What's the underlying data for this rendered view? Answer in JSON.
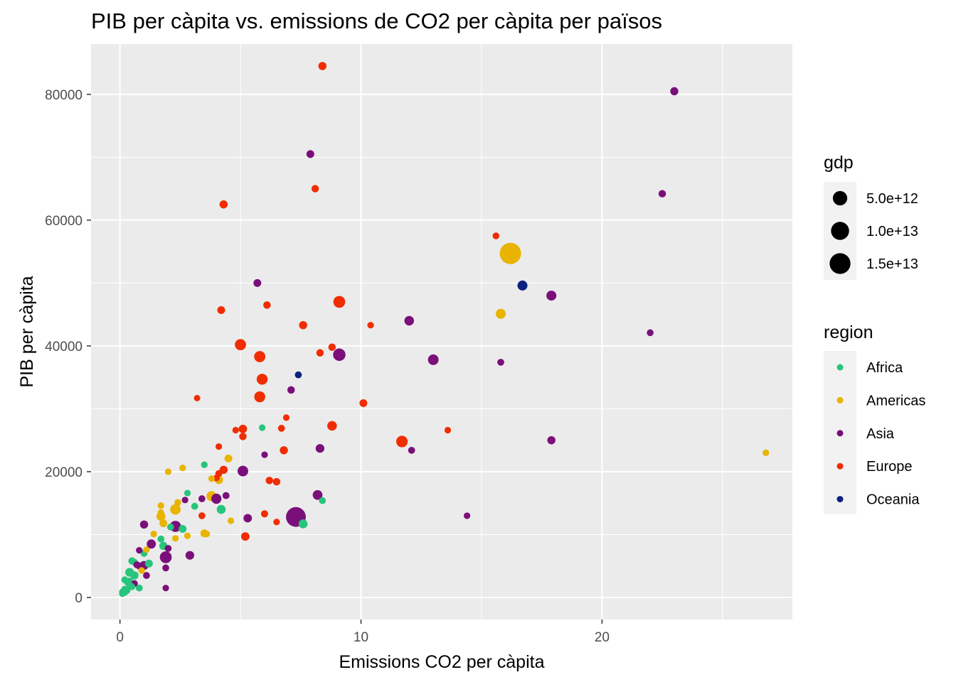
{
  "chart_data": {
    "type": "scatter",
    "title": "PIB per càpita vs. emissions de CO2 per càpita per països",
    "xlabel": "Emissions CO2 per càpita",
    "ylabel": "PIB per càpita",
    "xlim": [
      -1.2,
      27.9
    ],
    "ylim": [
      -3500,
      88000
    ],
    "x_ticks": [
      0,
      10,
      20
    ],
    "x_tick_labels": [
      "0",
      "10",
      "20"
    ],
    "y_ticks": [
      0,
      20000,
      40000,
      60000,
      80000
    ],
    "y_tick_labels": [
      "0",
      "20000",
      "40000",
      "60000",
      "80000"
    ],
    "grid": true,
    "legend_position": "right",
    "colors": {
      "Africa": "#27c47d",
      "Americas": "#e8b400",
      "Asia": "#7a0f7a",
      "Europe": "#f02d00",
      "Oceania": "#0d2080"
    },
    "size_legend": {
      "title": "gdp",
      "entries": [
        {
          "label": "5.0e+12",
          "value": 5000000000000.0
        },
        {
          "label": "1.0e+13",
          "value": 10000000000000.0
        },
        {
          "label": "1.5e+13",
          "value": 15000000000000.0
        }
      ]
    },
    "color_legend": {
      "title": "region",
      "entries": [
        "Africa",
        "Americas",
        "Asia",
        "Europe",
        "Oceania"
      ]
    },
    "points": [
      {
        "x": 8.4,
        "y": 84500,
        "region": "Europe",
        "gdp": 400000000000.0
      },
      {
        "x": 23.0,
        "y": 80500,
        "region": "Asia",
        "gdp": 400000000000.0
      },
      {
        "x": 7.9,
        "y": 70500,
        "region": "Asia",
        "gdp": 300000000000.0
      },
      {
        "x": 8.1,
        "y": 65000,
        "region": "Europe",
        "gdp": 200000000000.0
      },
      {
        "x": 22.5,
        "y": 64200,
        "region": "Asia",
        "gdp": 200000000000.0
      },
      {
        "x": 4.3,
        "y": 62500,
        "region": "Europe",
        "gdp": 400000000000.0
      },
      {
        "x": 15.6,
        "y": 57500,
        "region": "Europe",
        "gdp": 80000000000.0
      },
      {
        "x": 16.2,
        "y": 54700,
        "region": "Americas",
        "gdp": 16000000000000.0
      },
      {
        "x": 16.7,
        "y": 49600,
        "region": "Oceania",
        "gdp": 1200000000000.0
      },
      {
        "x": 17.9,
        "y": 48000,
        "region": "Asia",
        "gdp": 1200000000000.0
      },
      {
        "x": 5.7,
        "y": 50000,
        "region": "Asia",
        "gdp": 300000000000.0
      },
      {
        "x": 9.1,
        "y": 47000,
        "region": "Europe",
        "gdp": 2500000000000.0
      },
      {
        "x": 4.2,
        "y": 45700,
        "region": "Europe",
        "gdp": 300000000000.0
      },
      {
        "x": 6.1,
        "y": 46500,
        "region": "Europe",
        "gdp": 200000000000.0
      },
      {
        "x": 15.8,
        "y": 45100,
        "region": "Americas",
        "gdp": 1200000000000.0
      },
      {
        "x": 12.0,
        "y": 44000,
        "region": "Asia",
        "gdp": 1000000000000.0
      },
      {
        "x": 7.6,
        "y": 43300,
        "region": "Europe",
        "gdp": 400000000000.0
      },
      {
        "x": 10.4,
        "y": 43300,
        "region": "Europe",
        "gdp": 50000000000.0
      },
      {
        "x": 22.0,
        "y": 42100,
        "region": "Asia",
        "gdp": 80000000000.0
      },
      {
        "x": 5.0,
        "y": 40200,
        "region": "Europe",
        "gdp": 2000000000000.0
      },
      {
        "x": 8.8,
        "y": 39800,
        "region": "Europe",
        "gdp": 200000000000.0
      },
      {
        "x": 8.3,
        "y": 38900,
        "region": "Europe",
        "gdp": 200000000000.0
      },
      {
        "x": 9.1,
        "y": 38600,
        "region": "Asia",
        "gdp": 3000000000000.0
      },
      {
        "x": 5.8,
        "y": 38300,
        "region": "Europe",
        "gdp": 2000000000000.0
      },
      {
        "x": 13.0,
        "y": 37800,
        "region": "Asia",
        "gdp": 1600000000000.0
      },
      {
        "x": 15.8,
        "y": 37400,
        "region": "Asia",
        "gdp": 100000000000.0
      },
      {
        "x": 7.4,
        "y": 35400,
        "region": "Oceania",
        "gdp": 100000000000.0
      },
      {
        "x": 5.9,
        "y": 34700,
        "region": "Europe",
        "gdp": 1800000000000.0
      },
      {
        "x": 7.1,
        "y": 33000,
        "region": "Asia",
        "gdp": 200000000000.0
      },
      {
        "x": 5.8,
        "y": 31900,
        "region": "Europe",
        "gdp": 1800000000000.0
      },
      {
        "x": 3.2,
        "y": 31700,
        "region": "Europe",
        "gdp": 30000000000.0
      },
      {
        "x": 10.1,
        "y": 30900,
        "region": "Europe",
        "gdp": 300000000000.0
      },
      {
        "x": 6.9,
        "y": 28600,
        "region": "Europe",
        "gdp": 50000000000.0
      },
      {
        "x": 8.8,
        "y": 27300,
        "region": "Europe",
        "gdp": 1000000000000.0
      },
      {
        "x": 5.9,
        "y": 27000,
        "region": "Africa",
        "gdp": 50000000000.0
      },
      {
        "x": 4.8,
        "y": 26600,
        "region": "Europe",
        "gdp": 50000000000.0
      },
      {
        "x": 5.1,
        "y": 26800,
        "region": "Europe",
        "gdp": 500000000000.0
      },
      {
        "x": 6.7,
        "y": 26900,
        "region": "Europe",
        "gdp": 100000000000.0
      },
      {
        "x": 13.6,
        "y": 26600,
        "region": "Europe",
        "gdp": 50000000000.0
      },
      {
        "x": 5.1,
        "y": 25600,
        "region": "Europe",
        "gdp": 200000000000.0
      },
      {
        "x": 11.7,
        "y": 24800,
        "region": "Europe",
        "gdp": 2200000000000.0
      },
      {
        "x": 17.9,
        "y": 25000,
        "region": "Asia",
        "gdp": 400000000000.0
      },
      {
        "x": 4.1,
        "y": 24000,
        "region": "Europe",
        "gdp": 50000000000.0
      },
      {
        "x": 8.3,
        "y": 23700,
        "region": "Asia",
        "gdp": 600000000000.0
      },
      {
        "x": 12.1,
        "y": 23400,
        "region": "Asia",
        "gdp": 100000000000.0
      },
      {
        "x": 6.8,
        "y": 23400,
        "region": "Europe",
        "gdp": 400000000000.0
      },
      {
        "x": 26.8,
        "y": 23000,
        "region": "Americas",
        "gdp": 50000000000.0
      },
      {
        "x": 6.0,
        "y": 22700,
        "region": "Asia",
        "gdp": 50000000000.0
      },
      {
        "x": 4.5,
        "y": 22100,
        "region": "Americas",
        "gdp": 300000000000.0
      },
      {
        "x": 3.5,
        "y": 21100,
        "region": "Africa",
        "gdp": 60000000000.0
      },
      {
        "x": 2.6,
        "y": 20600,
        "region": "Americas",
        "gdp": 50000000000.0
      },
      {
        "x": 4.3,
        "y": 20300,
        "region": "Europe",
        "gdp": 400000000000.0
      },
      {
        "x": 5.1,
        "y": 20100,
        "region": "Asia",
        "gdp": 1600000000000.0
      },
      {
        "x": 2.0,
        "y": 20000,
        "region": "Americas",
        "gdp": 50000000000.0
      },
      {
        "x": 4.1,
        "y": 19700,
        "region": "Europe",
        "gdp": 100000000000.0
      },
      {
        "x": 4.0,
        "y": 19000,
        "region": "Europe",
        "gdp": 50000000000.0
      },
      {
        "x": 3.8,
        "y": 18900,
        "region": "Americas",
        "gdp": 50000000000.0
      },
      {
        "x": 4.1,
        "y": 18700,
        "region": "Americas",
        "gdp": 500000000000.0
      },
      {
        "x": 6.2,
        "y": 18600,
        "region": "Europe",
        "gdp": 200000000000.0
      },
      {
        "x": 6.5,
        "y": 18400,
        "region": "Europe",
        "gdp": 200000000000.0
      },
      {
        "x": 2.8,
        "y": 16600,
        "region": "Africa",
        "gdp": 50000000000.0
      },
      {
        "x": 8.2,
        "y": 16300,
        "region": "Asia",
        "gdp": 1100000000000.0
      },
      {
        "x": 4.4,
        "y": 16200,
        "region": "Asia",
        "gdp": 120000000000.0
      },
      {
        "x": 3.8,
        "y": 16100,
        "region": "Americas",
        "gdp": 1300000000000.0
      },
      {
        "x": 4.0,
        "y": 15700,
        "region": "Asia",
        "gdp": 1300000000000.0
      },
      {
        "x": 3.4,
        "y": 15700,
        "region": "Asia",
        "gdp": 100000000000.0
      },
      {
        "x": 2.7,
        "y": 15500,
        "region": "Asia",
        "gdp": 50000000000.0
      },
      {
        "x": 8.4,
        "y": 15400,
        "region": "Africa",
        "gdp": 100000000000.0
      },
      {
        "x": 2.4,
        "y": 15100,
        "region": "Americas",
        "gdp": 100000000000.0
      },
      {
        "x": 1.7,
        "y": 14600,
        "region": "Americas",
        "gdp": 50000000000.0
      },
      {
        "x": 3.1,
        "y": 14500,
        "region": "Africa",
        "gdp": 100000000000.0
      },
      {
        "x": 2.3,
        "y": 14000,
        "region": "Americas",
        "gdp": 1500000000000.0
      },
      {
        "x": 4.2,
        "y": 14000,
        "region": "Africa",
        "gdp": 700000000000.0
      },
      {
        "x": 1.7,
        "y": 13500,
        "region": "Americas",
        "gdp": 50000000000.0
      },
      {
        "x": 6.0,
        "y": 13300,
        "region": "Europe",
        "gdp": 150000000000.0
      },
      {
        "x": 3.4,
        "y": 13000,
        "region": "Europe",
        "gdp": 100000000000.0
      },
      {
        "x": 1.7,
        "y": 12900,
        "region": "Americas",
        "gdp": 700000000000.0
      },
      {
        "x": 7.3,
        "y": 12800,
        "region": "Asia",
        "gdp": 13000000000000.0
      },
      {
        "x": 5.3,
        "y": 12600,
        "region": "Asia",
        "gdp": 500000000000.0
      },
      {
        "x": 4.6,
        "y": 12200,
        "region": "Americas",
        "gdp": 50000000000.0
      },
      {
        "x": 6.5,
        "y": 12000,
        "region": "Europe",
        "gdp": 50000000000.0
      },
      {
        "x": 1.8,
        "y": 11800,
        "region": "Americas",
        "gdp": 300000000000.0
      },
      {
        "x": 7.6,
        "y": 11700,
        "region": "Africa",
        "gdp": 700000000000.0
      },
      {
        "x": 1.0,
        "y": 11600,
        "region": "Asia",
        "gdp": 400000000000.0
      },
      {
        "x": 2.3,
        "y": 11300,
        "region": "Asia",
        "gdp": 2000000000000.0
      },
      {
        "x": 2.1,
        "y": 11200,
        "region": "Africa",
        "gdp": 100000000000.0
      },
      {
        "x": 2.6,
        "y": 10900,
        "region": "Africa",
        "gdp": 300000000000.0
      },
      {
        "x": 3.5,
        "y": 10200,
        "region": "Americas",
        "gdp": 300000000000.0
      },
      {
        "x": 1.4,
        "y": 10100,
        "region": "Americas",
        "gdp": 50000000000.0
      },
      {
        "x": 3.6,
        "y": 10100,
        "region": "Americas",
        "gdp": 50000000000.0
      },
      {
        "x": 2.8,
        "y": 9800,
        "region": "Americas",
        "gdp": 50000000000.0
      },
      {
        "x": 5.2,
        "y": 9700,
        "region": "Europe",
        "gdp": 500000000000.0
      },
      {
        "x": 1.7,
        "y": 9300,
        "region": "Africa",
        "gdp": 100000000000.0
      },
      {
        "x": 2.3,
        "y": 9400,
        "region": "Americas",
        "gdp": 50000000000.0
      },
      {
        "x": 1.3,
        "y": 8500,
        "region": "Asia",
        "gdp": 800000000000.0
      },
      {
        "x": 1.8,
        "y": 8200,
        "region": "Africa",
        "gdp": 400000000000.0
      },
      {
        "x": 2.0,
        "y": 7800,
        "region": "Asia",
        "gdp": 100000000000.0
      },
      {
        "x": 1.1,
        "y": 7600,
        "region": "Americas",
        "gdp": 50000000000.0
      },
      {
        "x": 0.8,
        "y": 7500,
        "region": "Asia",
        "gdp": 50000000000.0
      },
      {
        "x": 1.0,
        "y": 7000,
        "region": "Africa",
        "gdp": 100000000000.0
      },
      {
        "x": 2.9,
        "y": 6700,
        "region": "Asia",
        "gdp": 600000000000.0
      },
      {
        "x": 1.9,
        "y": 6400,
        "region": "Asia",
        "gdp": 2500000000000.0
      },
      {
        "x": 0.5,
        "y": 5800,
        "region": "Africa",
        "gdp": 200000000000.0
      },
      {
        "x": 0.6,
        "y": 5600,
        "region": "Africa",
        "gdp": 100000000000.0
      },
      {
        "x": 1.2,
        "y": 5400,
        "region": "Africa",
        "gdp": 300000000000.0
      },
      {
        "x": 0.7,
        "y": 5200,
        "region": "Asia",
        "gdp": 100000000000.0
      },
      {
        "x": 1.0,
        "y": 5100,
        "region": "Asia",
        "gdp": 700000000000.0
      },
      {
        "x": 0.8,
        "y": 5000,
        "region": "Asia",
        "gdp": 100000000000.0
      },
      {
        "x": 1.9,
        "y": 4700,
        "region": "Asia",
        "gdp": 100000000000.0
      },
      {
        "x": 0.9,
        "y": 4300,
        "region": "Americas",
        "gdp": 50000000000.0
      },
      {
        "x": 0.4,
        "y": 4000,
        "region": "Africa",
        "gdp": 600000000000.0
      },
      {
        "x": 0.6,
        "y": 3500,
        "region": "Africa",
        "gdp": 400000000000.0
      },
      {
        "x": 1.1,
        "y": 3500,
        "region": "Asia",
        "gdp": 100000000000.0
      },
      {
        "x": 0.2,
        "y": 2800,
        "region": "Africa",
        "gdp": 100000000000.0
      },
      {
        "x": 0.4,
        "y": 2600,
        "region": "Africa",
        "gdp": 100000000000.0
      },
      {
        "x": 0.3,
        "y": 2400,
        "region": "Africa",
        "gdp": 50000000000.0
      },
      {
        "x": 0.6,
        "y": 2200,
        "region": "Asia",
        "gdp": 100000000000.0
      },
      {
        "x": 0.4,
        "y": 2000,
        "region": "Africa",
        "gdp": 100000000000.0
      },
      {
        "x": 0.5,
        "y": 1700,
        "region": "Africa",
        "gdp": 50000000000.0
      },
      {
        "x": 0.8,
        "y": 1500,
        "region": "Africa",
        "gdp": 100000000000.0
      },
      {
        "x": 1.9,
        "y": 1500,
        "region": "Asia",
        "gdp": 50000000000.0
      },
      {
        "x": 0.2,
        "y": 1300,
        "region": "Africa",
        "gdp": 100000000000.0
      },
      {
        "x": 0.3,
        "y": 1100,
        "region": "Africa",
        "gdp": 50000000000.0
      },
      {
        "x": 0.1,
        "y": 900,
        "region": "Africa",
        "gdp": 50000000000.0
      },
      {
        "x": 0.2,
        "y": 800,
        "region": "Africa",
        "gdp": 50000000000.0
      },
      {
        "x": 0.1,
        "y": 600,
        "region": "Africa",
        "gdp": 50000000000.0
      },
      {
        "x": 14.4,
        "y": 13000,
        "region": "Asia",
        "gdp": 50000000000.0
      }
    ]
  }
}
